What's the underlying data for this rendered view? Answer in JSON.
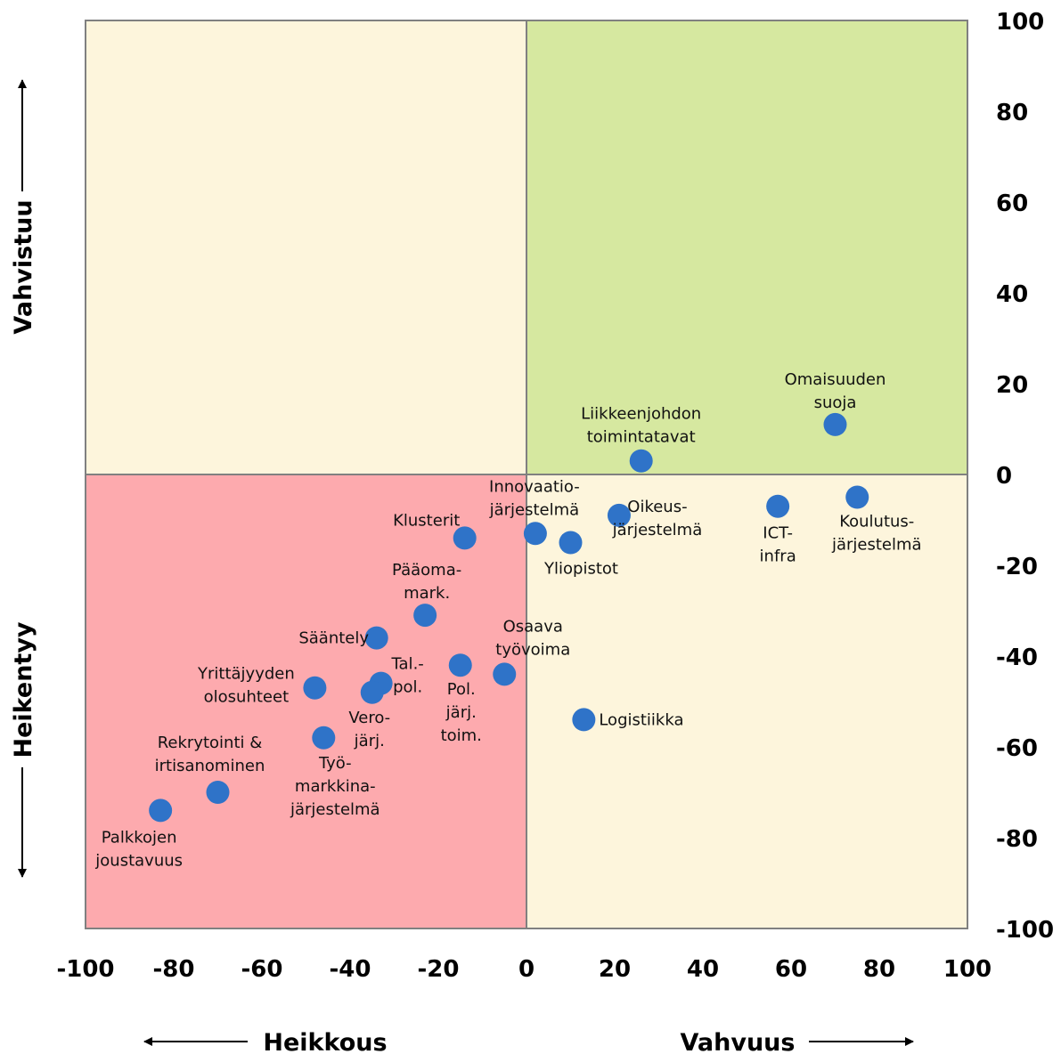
{
  "chart_data": {
    "type": "scatter",
    "xlim": [
      -100,
      100
    ],
    "ylim": [
      -100,
      100
    ],
    "x_ticks": [
      "-100",
      "-80",
      "-60",
      "-40",
      "-20",
      "0",
      "20",
      "40",
      "60",
      "80",
      "100"
    ],
    "y_ticks": [
      "100",
      "80",
      "60",
      "40",
      "20",
      "0",
      "-20",
      "-40",
      "-60",
      "-80",
      "-100"
    ],
    "x_axis_left_label": "Heikkous",
    "x_axis_right_label": "Vahvuus",
    "y_axis_top_label": "Vahvistuu",
    "y_axis_bottom_label": "Heikentyy",
    "quadrant_colors": {
      "top_left": "#fdf5dc",
      "top_right": "#d6e8a0",
      "bottom_left": "#fdaaae",
      "bottom_right": "#fdf5dc"
    },
    "point_color": "#2f73c8",
    "points": [
      {
        "label": [
          "Omaisuuden",
          "suoja"
        ],
        "x": 70,
        "y": 11
      },
      {
        "label": [
          "Liikkeenjohdon",
          "toimintatavat"
        ],
        "x": 26,
        "y": 3
      },
      {
        "label": [
          "Koulutus-",
          "järjestelmä"
        ],
        "x": 75,
        "y": -5
      },
      {
        "label": [
          "ICT-",
          "infra"
        ],
        "x": 57,
        "y": -7
      },
      {
        "label": [
          "Oikeus-",
          "järjestelmä"
        ],
        "x": 21,
        "y": -9
      },
      {
        "label": [
          "Innovaatio-",
          "järjestelmä"
        ],
        "x": 2,
        "y": -13
      },
      {
        "label": [
          "Yliopistot"
        ],
        "x": 10,
        "y": -15
      },
      {
        "label": [
          "Klusterit"
        ],
        "x": -14,
        "y": -14
      },
      {
        "label": [
          "Pääoma-",
          "mark."
        ],
        "x": -23,
        "y": -31
      },
      {
        "label": [
          "Sääntely"
        ],
        "x": -34,
        "y": -36
      },
      {
        "label": [
          "Osaava",
          "työvoima"
        ],
        "x": -5,
        "y": -44
      },
      {
        "label": [
          "Pol.",
          "järj.",
          "toim."
        ],
        "x": -15,
        "y": -42
      },
      {
        "label": [
          "Tal.-",
          "pol."
        ],
        "x": -33,
        "y": -46
      },
      {
        "label": [
          "Vero-",
          "järj."
        ],
        "x": -35,
        "y": -48
      },
      {
        "label": [
          "Yrittäjyyden",
          "olosuhteet"
        ],
        "x": -48,
        "y": -47
      },
      {
        "label": [
          "Logistiikka"
        ],
        "x": 13,
        "y": -54
      },
      {
        "label": [
          "Työ-",
          "markkina-",
          "järjestelmä"
        ],
        "x": -46,
        "y": -58
      },
      {
        "label": [
          "Rekrytointi &",
          "irtisanominen"
        ],
        "x": -70,
        "y": -70
      },
      {
        "label": [
          "Palkkojen",
          "joustavuus"
        ],
        "x": -83,
        "y": -74
      }
    ]
  }
}
